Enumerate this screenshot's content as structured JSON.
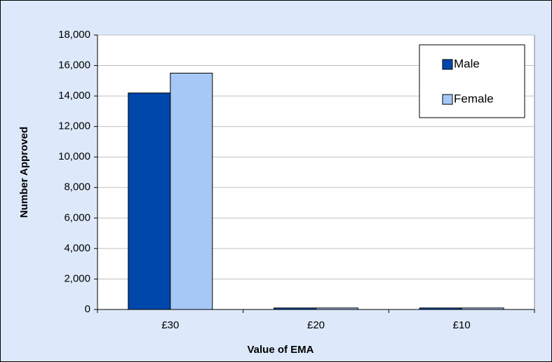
{
  "chart_data": {
    "type": "bar",
    "x_label": "Value of EMA",
    "y_label": "Number Approved",
    "categories": [
      "£30",
      "£20",
      "£10"
    ],
    "series": [
      {
        "name": "Male",
        "color": "#0047ab",
        "values": [
          14200,
          100,
          100
        ]
      },
      {
        "name": "Female",
        "color": "#a6c8f7",
        "values": [
          15500,
          100,
          100
        ]
      }
    ],
    "ylim": [
      0,
      18000
    ],
    "yticks": [
      0,
      {
        "value": 2000,
        "label": "2,000"
      },
      {
        "value": 4000,
        "label": "4,000"
      },
      {
        "value": 6000,
        "label": "6,000"
      },
      {
        "value": 8000,
        "label": "8,000"
      },
      {
        "value": 10000,
        "label": "10,000"
      },
      {
        "value": 12000,
        "label": "12,000"
      },
      {
        "value": 14000,
        "label": "14,000"
      },
      {
        "value": 16000,
        "label": "16,000"
      },
      {
        "value": 18000,
        "label": "18,000"
      }
    ],
    "grid": true,
    "legend": "upper right"
  }
}
